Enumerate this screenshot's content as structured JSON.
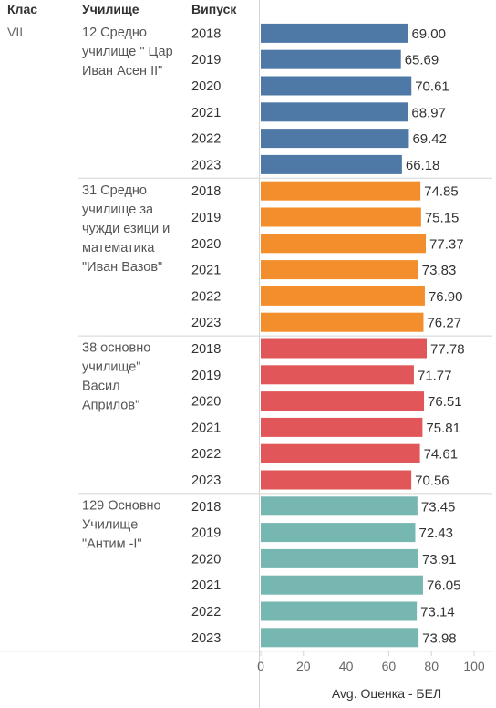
{
  "headers": {
    "class": "Клас",
    "school": "Училище",
    "year": "Випуск"
  },
  "class_label": "VII",
  "chart_data": {
    "type": "bar",
    "orientation": "horizontal",
    "xlabel": "Avg. Оценка - БЕЛ",
    "xlim": [
      0,
      100
    ],
    "x_ticks": [
      "0",
      "20",
      "40",
      "60",
      "80",
      "100"
    ],
    "groups": [
      {
        "school_lines": [
          "12 Средно",
          "училище \" Цар",
          "Иван Асен II\""
        ],
        "color": "#4e79a7",
        "years": [
          "2018",
          "2019",
          "2020",
          "2021",
          "2022",
          "2023"
        ],
        "values": [
          69.0,
          65.69,
          70.61,
          68.97,
          69.42,
          66.18
        ],
        "labels": [
          "69.00",
          "65.69",
          "70.61",
          "68.97",
          "69.42",
          "66.18"
        ]
      },
      {
        "school_lines": [
          "31 Средно",
          "училище за",
          "чужди езици и",
          "математика",
          "\"Иван Вазов\""
        ],
        "color": "#f28e2b",
        "years": [
          "2018",
          "2019",
          "2020",
          "2021",
          "2022",
          "2023"
        ],
        "values": [
          74.85,
          75.15,
          77.37,
          73.83,
          76.9,
          76.27
        ],
        "labels": [
          "74.85",
          "75.15",
          "77.37",
          "73.83",
          "76.90",
          "76.27"
        ]
      },
      {
        "school_lines": [
          "38 основно",
          "училище\"",
          "Васил",
          "Априлов\""
        ],
        "color": "#e15759",
        "years": [
          "2018",
          "2019",
          "2020",
          "2021",
          "2022",
          "2023"
        ],
        "values": [
          77.78,
          71.77,
          76.51,
          75.81,
          74.61,
          70.56
        ],
        "labels": [
          "77.78",
          "71.77",
          "76.51",
          "75.81",
          "74.61",
          "70.56"
        ]
      },
      {
        "school_lines": [
          "129 Основно",
          "Училище",
          "\"Антим -I\""
        ],
        "color": "#76b7b2",
        "years": [
          "2018",
          "2019",
          "2020",
          "2021",
          "2022",
          "2023"
        ],
        "values": [
          73.45,
          72.43,
          73.91,
          76.05,
          73.14,
          73.98
        ],
        "labels": [
          "73.45",
          "72.43",
          "73.91",
          "76.05",
          "73.14",
          "73.98"
        ]
      }
    ]
  }
}
